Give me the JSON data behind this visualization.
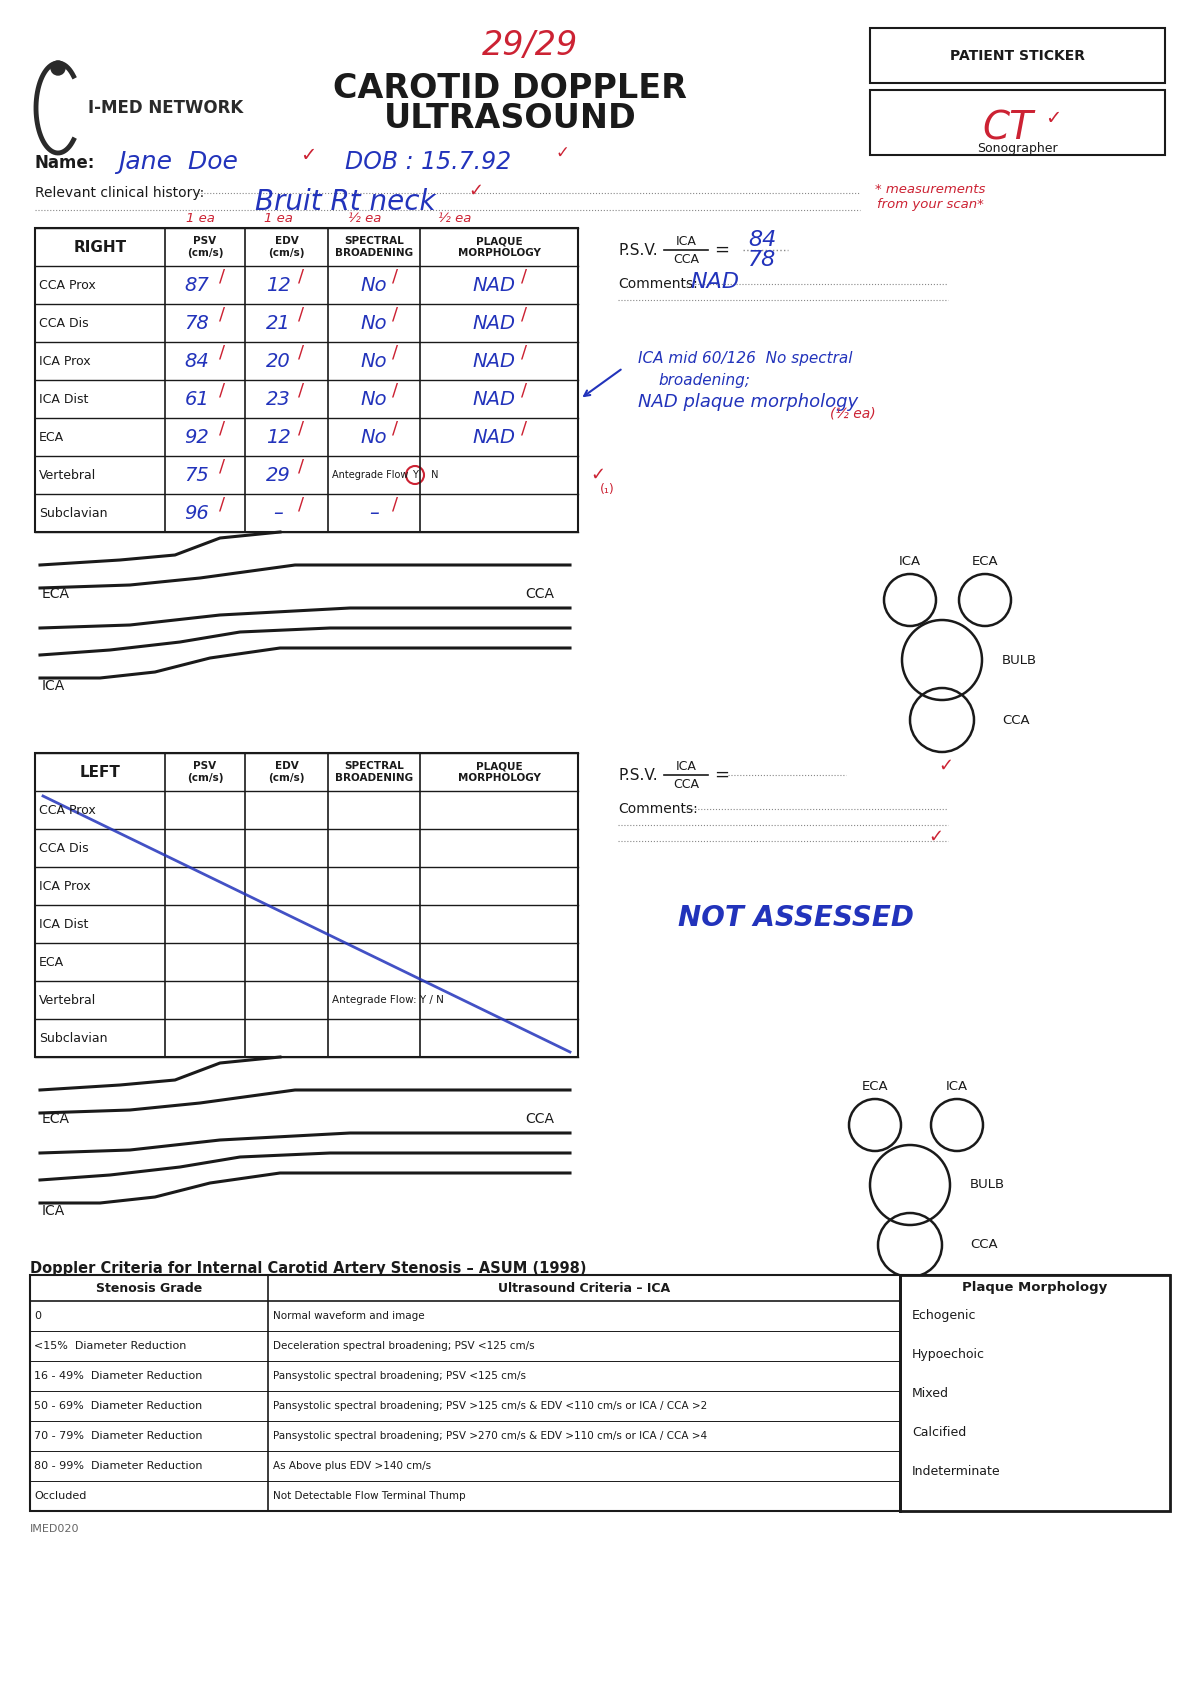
{
  "title_line1": "CAROTID DOPPLER",
  "title_line2": "ULTRASOUND",
  "logo_text": "I-MED NETWORK",
  "page_number": "29/29",
  "patient_sticker": "PATIENT STICKER",
  "sonographer_label": "Sonographer",
  "sonographer_initials": "CT",
  "name_label": "Name:",
  "name_value": "Jane  Doe",
  "dob_value": "DOB : 15.7.92",
  "history_label": "Relevant clinical history:",
  "history_value": "Bruit Rt neck",
  "right_table_header": "RIGHT",
  "left_table_header": "LEFT",
  "col_headers": [
    "PSV\n(cm/s)",
    "EDV\n(cm/s)",
    "SPECTRAL\nBROADENING",
    "PLAQUE\nMORPHOLOGY"
  ],
  "row_labels": [
    "CCA Prox",
    "CCA Dis",
    "ICA Prox",
    "ICA Dist",
    "ECA",
    "Vertebral",
    "Subclavian"
  ],
  "right_data": [
    [
      "87",
      "12",
      "No",
      "NAD"
    ],
    [
      "78",
      "21",
      "No",
      "NAD"
    ],
    [
      "84",
      "20",
      "No",
      "NAD"
    ],
    [
      "61",
      "23",
      "No",
      "NAD"
    ],
    [
      "92",
      "12",
      "No",
      "NAD"
    ],
    [
      "75",
      "29",
      "Antegrade Flow(Y) N",
      ""
    ],
    [
      "96",
      "–",
      "–",
      ""
    ]
  ],
  "left_data": [
    [
      "",
      "",
      "",
      ""
    ],
    [
      "",
      "",
      "",
      ""
    ],
    [
      "",
      "",
      "",
      ""
    ],
    [
      "",
      "",
      "",
      ""
    ],
    [
      "",
      "",
      "",
      ""
    ],
    [
      "",
      "",
      "Antegrade Flow: Y / N",
      ""
    ],
    [
      "",
      "",
      "",
      ""
    ]
  ],
  "right_psv_label": "P.S.V.",
  "right_ica_cca_num": "84",
  "right_ica_cca_den": "78",
  "right_comments_label": "Comments:",
  "right_comments_value": "NAD",
  "right_annotation1": "ICA mid 60/126  No spectral",
  "right_annotation2": "broadening;",
  "right_annotation3": "NAD plaque morphology",
  "left_psv_label": "P.S.V.",
  "left_comments_label": "Comments:",
  "left_not_assessed": "NOT ASSESSED",
  "ea_labels_right": [
    "1 ea",
    "1 ea",
    "½ ea",
    "½ ea"
  ],
  "half_ea_note": "(½ ea)",
  "measurements_note": "* measurements\nfrom your scan*",
  "doppler_title": "Doppler Criteria for Internal Carotid Artery Stenosis – ASUM (1998)",
  "stenosis_col1": "Stenosis Grade",
  "stenosis_col2": "Ultrasound Criteria – ICA",
  "stenosis_col3": "Plaque Morphology",
  "stenosis_rows": [
    [
      "0",
      "Normal waveform and image"
    ],
    [
      "<15%  Diameter Reduction",
      "Deceleration spectral broadening; PSV <125 cm/s"
    ],
    [
      "16 - 49%  Diameter Reduction",
      "Pansystolic spectral broadening; PSV <125 cm/s"
    ],
    [
      "50 - 69%  Diameter Reduction",
      "Pansystolic spectral broadening; PSV >125 cm/s & EDV <110 cm/s or ICA / CCA >2"
    ],
    [
      "70 - 79%  Diameter Reduction",
      "Pansystolic spectral broadening; PSV >270 cm/s & EDV >110 cm/s or ICA / CCA >4"
    ],
    [
      "80 - 99%  Diameter Reduction",
      "As Above plus EDV >140 cm/s"
    ],
    [
      "Occluded",
      "Not Detectable Flow Terminal Thump"
    ]
  ],
  "plaque_morphology_items": [
    "Echogenic",
    "Hypoechoic",
    "Mixed",
    "Calcified",
    "Indeterminate"
  ],
  "footer": "IMED020",
  "bg_color": "#ffffff",
  "black": "#1a1a1a",
  "blue": "#2233bb",
  "red": "#cc2233",
  "gray": "#888888"
}
